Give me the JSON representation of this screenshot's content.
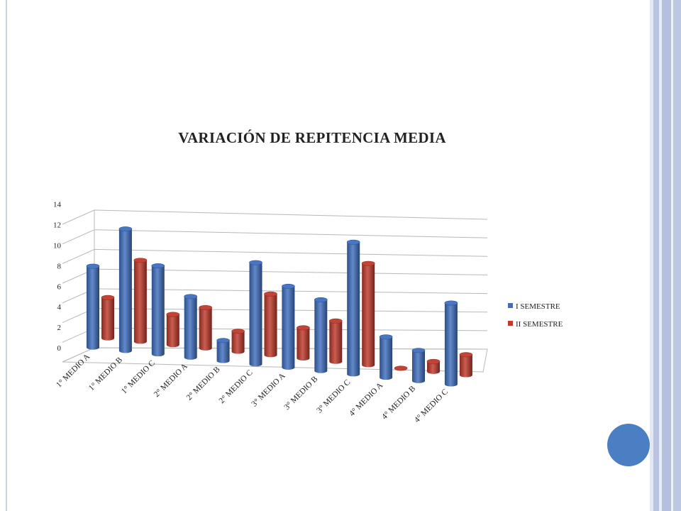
{
  "slide": {
    "accent_color": "#4a7fc4",
    "frame_color": "#b9c4e0"
  },
  "chart_data": {
    "type": "bar",
    "style": "3d-cylinder",
    "title": "VARIACIÓN  DE REPITENCIA MEDIA",
    "xlabel": "",
    "ylabel": "",
    "ylim": [
      0,
      14
    ],
    "yticks": [
      0,
      2,
      4,
      6,
      8,
      10,
      12,
      14
    ],
    "grid": true,
    "legend_position": "right",
    "categories": [
      "1° MEDIO A",
      "1° MEDIO B",
      "1° MEDIO C",
      "2° MEDIO A",
      "2° MEDIO B",
      "2° MEDIO C",
      "3° MEDIO A",
      "3° MEDIO B",
      "3° MEDIO C",
      "4° MEDIO A",
      "4° MEDIO B",
      "4° MEDIO C"
    ],
    "series": [
      {
        "name": "I SEMESTRE",
        "color": "#3f6fbf",
        "values": [
          8,
          12,
          8.7,
          6,
          2,
          10,
          8,
          7,
          13,
          4,
          3,
          8
        ]
      },
      {
        "name": "II SEMESTRE",
        "color": "#c0392b",
        "values": [
          4,
          8,
          3,
          4,
          2,
          6,
          3,
          4,
          10,
          0,
          1,
          2
        ]
      }
    ]
  }
}
